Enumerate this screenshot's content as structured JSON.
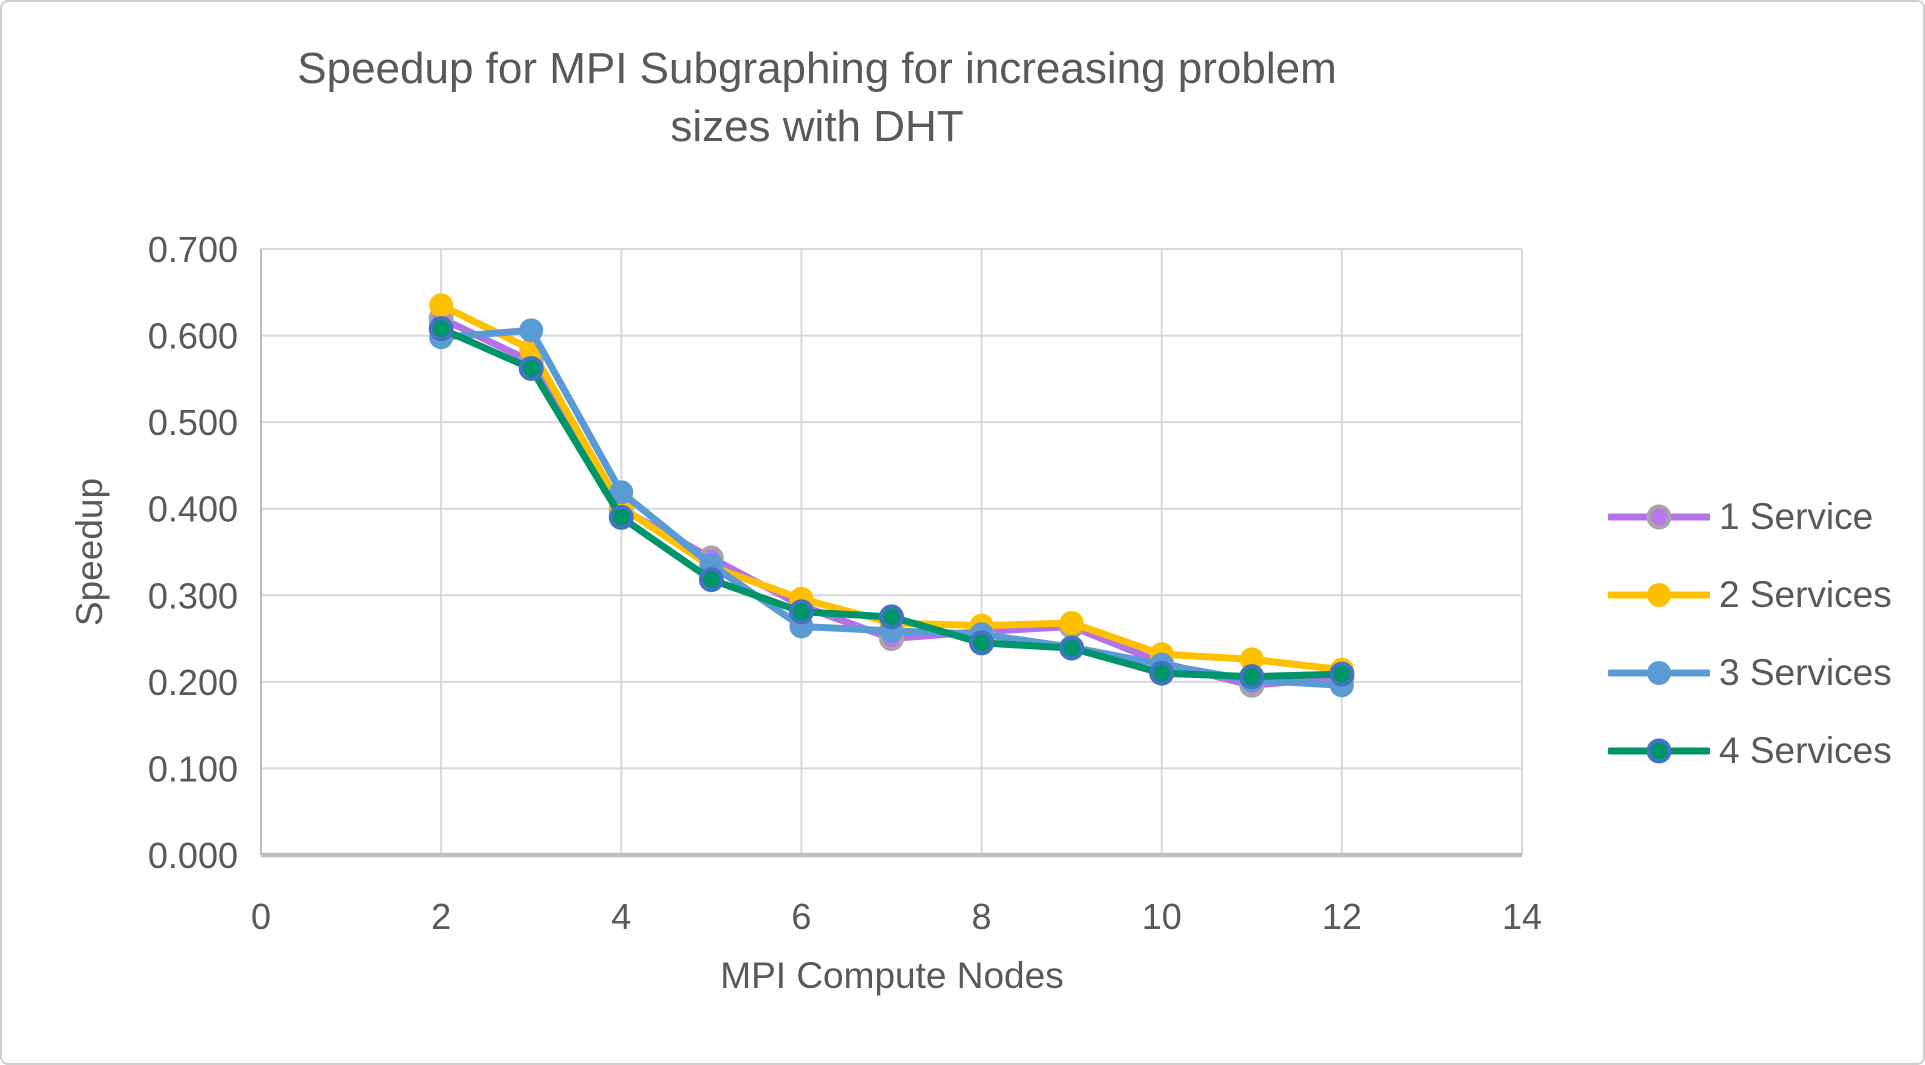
{
  "chart_data": {
    "type": "line",
    "title": "Speedup for MPI Subgraphing for increasing problem sizes with DHT",
    "title_line1": "Speedup for MPI Subgraphing for increasing problem",
    "title_line2": "sizes with DHT",
    "xlabel": "MPI Compute Nodes",
    "ylabel": "Speedup",
    "xlim": [
      0,
      14
    ],
    "ylim": [
      0,
      0.7
    ],
    "grid": true,
    "legend_position": "right",
    "x": [
      2,
      3,
      4,
      5,
      6,
      7,
      8,
      9,
      10,
      11,
      12
    ],
    "series": [
      {
        "name": "1 Service",
        "color": "#b472e8",
        "marker_fill": "#b877ea",
        "marker_stroke": "#a6a6a6",
        "values": [
          0.62,
          0.57,
          0.4,
          0.343,
          0.288,
          0.25,
          0.258,
          0.264,
          0.222,
          0.196,
          0.205
        ]
      },
      {
        "name": "2 Services",
        "color": "#ffc000",
        "marker_fill": "#ffc000",
        "marker_stroke": "#ffc000",
        "values": [
          0.635,
          0.584,
          0.402,
          0.333,
          0.296,
          0.268,
          0.265,
          0.268,
          0.232,
          0.226,
          0.214
        ]
      },
      {
        "name": "3 Services",
        "color": "#5b9bd5",
        "marker_fill": "#5b9bd5",
        "marker_stroke": "#5b9bd5",
        "values": [
          0.598,
          0.606,
          0.419,
          0.335,
          0.264,
          0.259,
          0.255,
          0.24,
          0.22,
          0.202,
          0.196
        ]
      },
      {
        "name": "4 Services",
        "color": "#00946b",
        "marker_fill": "#00946b",
        "marker_stroke": "#4472c4",
        "values": [
          0.608,
          0.562,
          0.39,
          0.318,
          0.281,
          0.275,
          0.245,
          0.239,
          0.21,
          0.206,
          0.209
        ]
      }
    ],
    "x_axis": {
      "tick_labels": [
        "0",
        "2",
        "4",
        "6",
        "8",
        "10",
        "12",
        "14"
      ],
      "tick_values": [
        0,
        2,
        4,
        6,
        8,
        10,
        12,
        14
      ]
    },
    "y_axis": {
      "tick_labels": [
        "0.000",
        "0.100",
        "0.200",
        "0.300",
        "0.400",
        "0.500",
        "0.600",
        "0.700"
      ],
      "tick_values": [
        0,
        0.1,
        0.2,
        0.3,
        0.4,
        0.5,
        0.6,
        0.7
      ]
    }
  },
  "style": {
    "text_color": "#595959",
    "gridline_color": "#d9d9d9",
    "axis_color": "#bfbfbf",
    "background": "#ffffff",
    "border_color": "#cfcfcf"
  }
}
